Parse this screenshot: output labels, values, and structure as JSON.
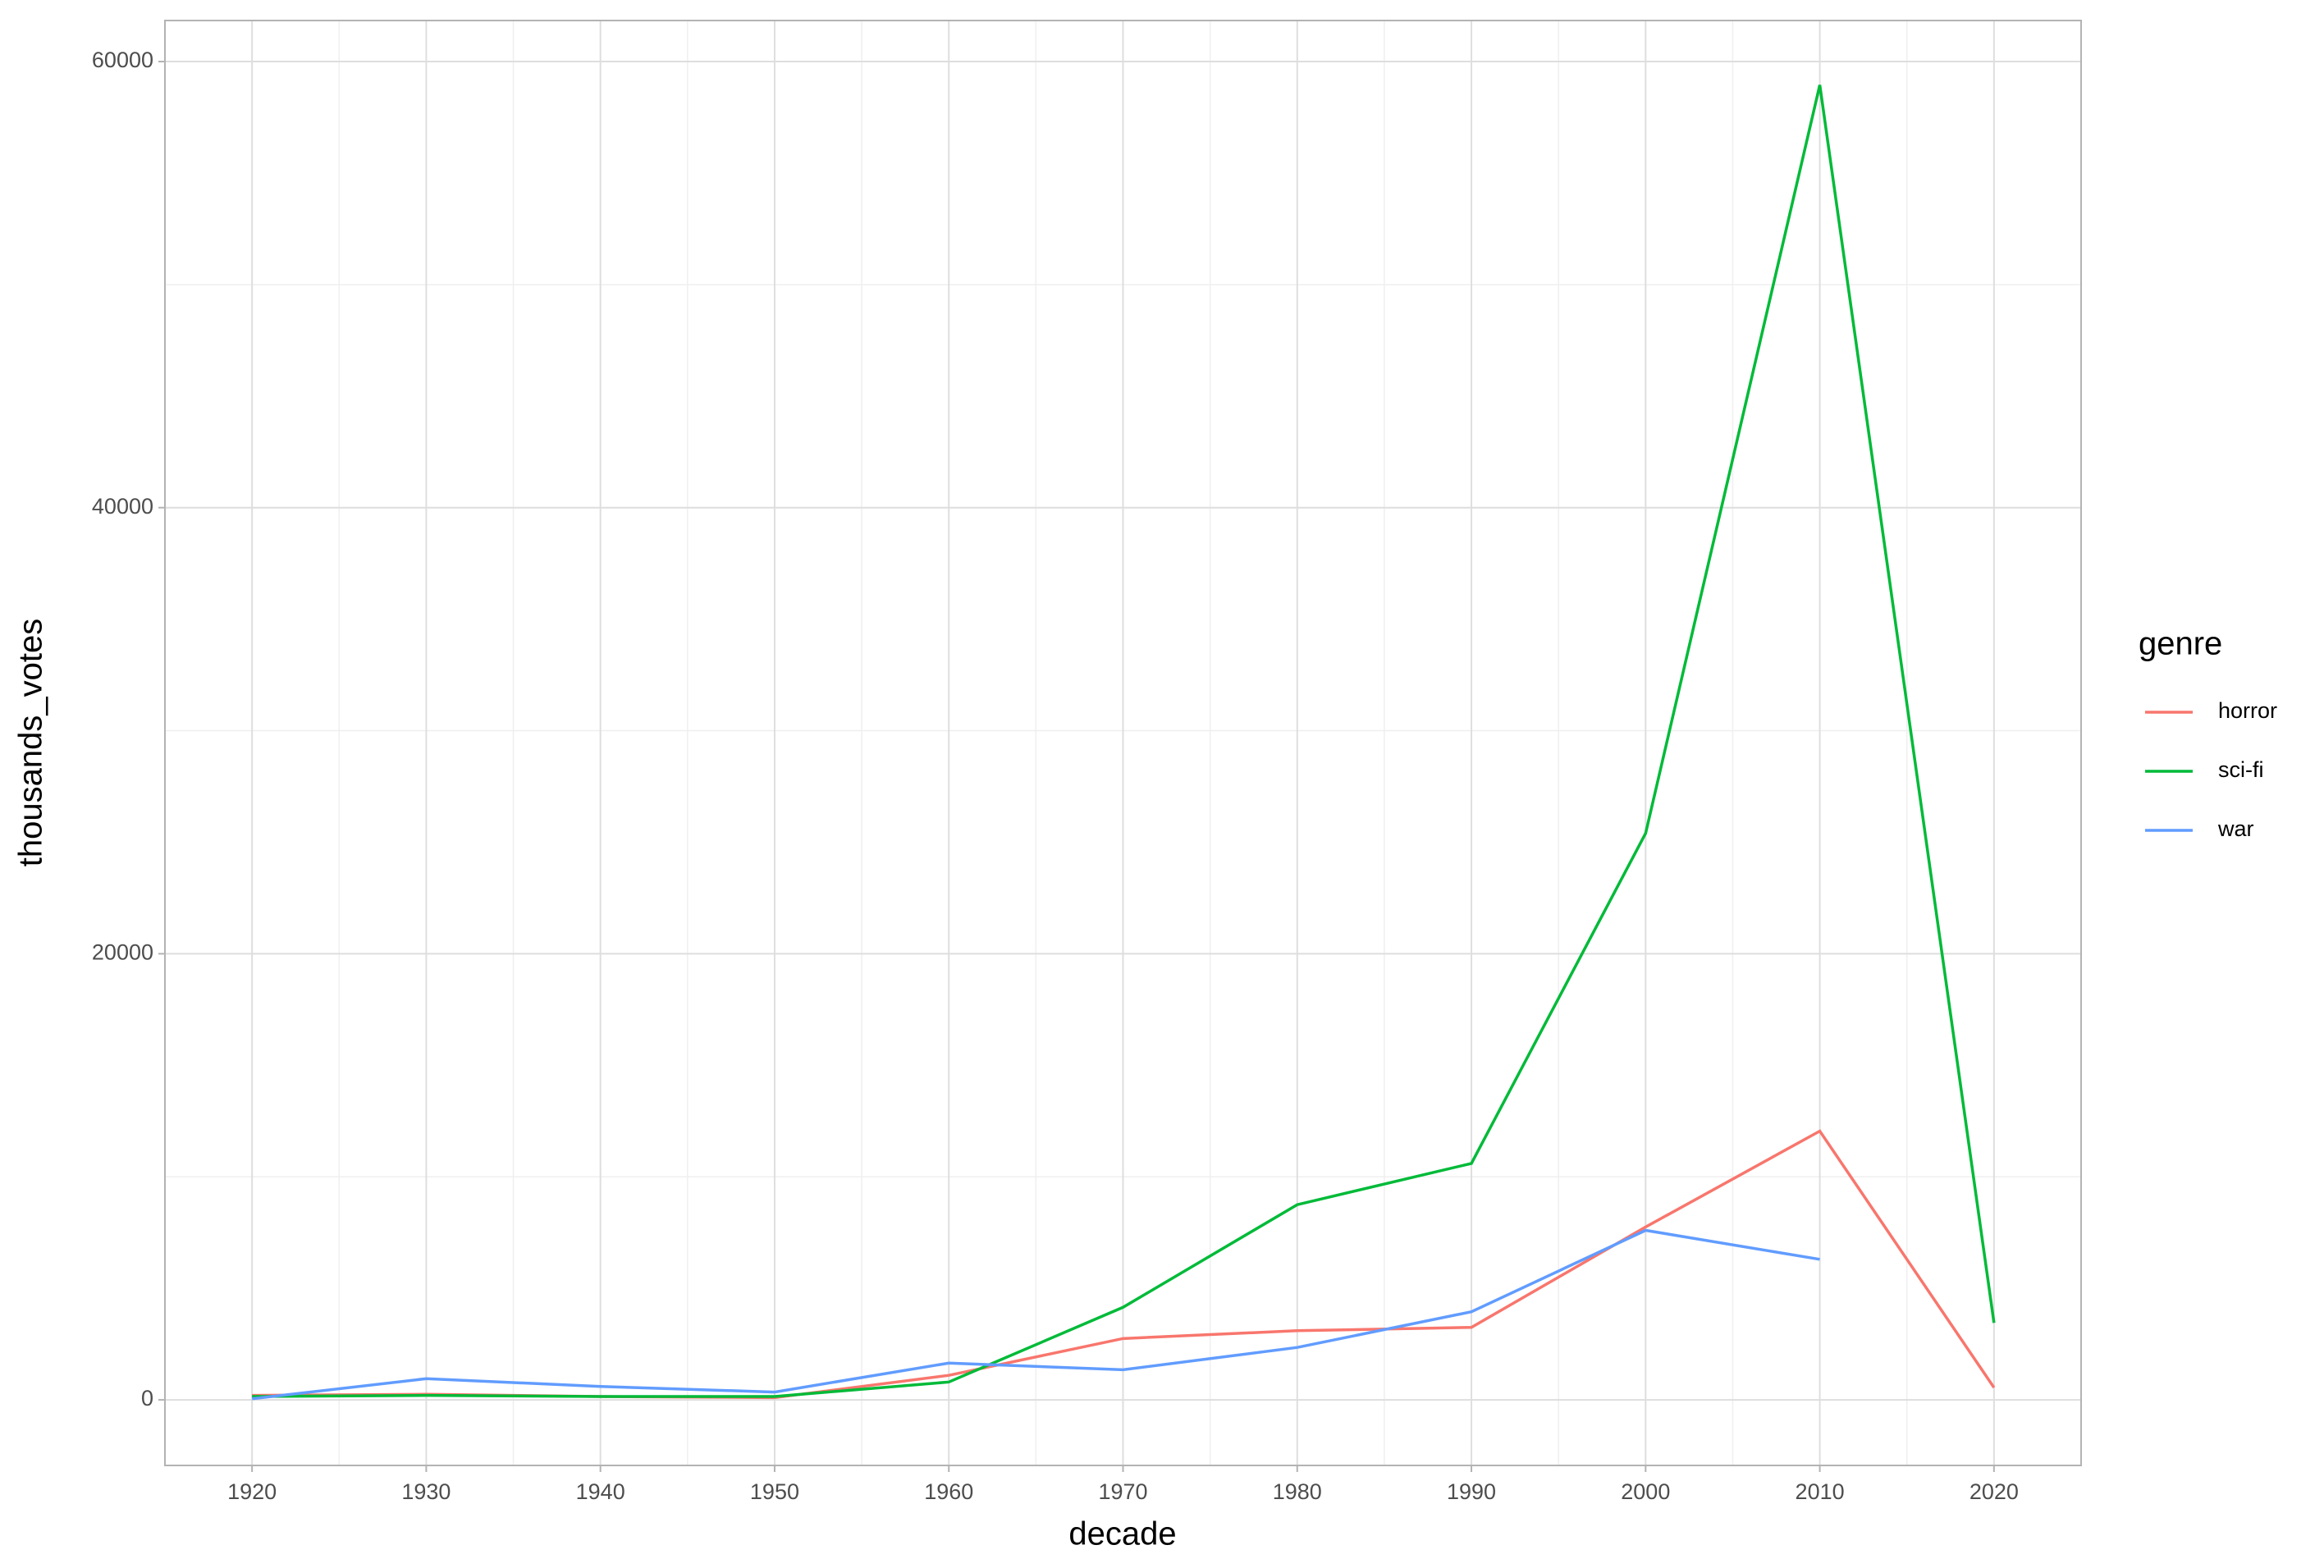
{
  "chart_data": {
    "type": "line",
    "x_label": "decade",
    "y_label": "thousands_votes",
    "x": [
      1920,
      1930,
      1940,
      1950,
      1960,
      1970,
      1980,
      1990,
      2000,
      2010,
      2020
    ],
    "series": [
      {
        "name": "horror",
        "color": "#F8766D",
        "values": [
          200,
          250,
          150,
          100,
          1100,
          2750,
          3100,
          3250,
          7750,
          12050,
          550
        ]
      },
      {
        "name": "sci-fi",
        "color": "#00BA38",
        "values": [
          150,
          200,
          150,
          150,
          800,
          4150,
          8750,
          10600,
          25400,
          58950,
          3450
        ]
      },
      {
        "name": "war",
        "color": "#619CFF",
        "values": [
          50,
          950,
          600,
          350,
          1650,
          1350,
          2350,
          3950,
          7600,
          6300,
          null
        ]
      }
    ],
    "legend_title": "genre",
    "legend_position": "right",
    "xlim": [
      1915,
      2025
    ],
    "xticks": [
      1920,
      1930,
      1940,
      1950,
      1960,
      1970,
      1980,
      1990,
      2000,
      2010,
      2020
    ],
    "ylim": [
      -2940,
      61840
    ],
    "yticks": [
      0,
      20000,
      40000,
      60000
    ],
    "grid": true
  }
}
